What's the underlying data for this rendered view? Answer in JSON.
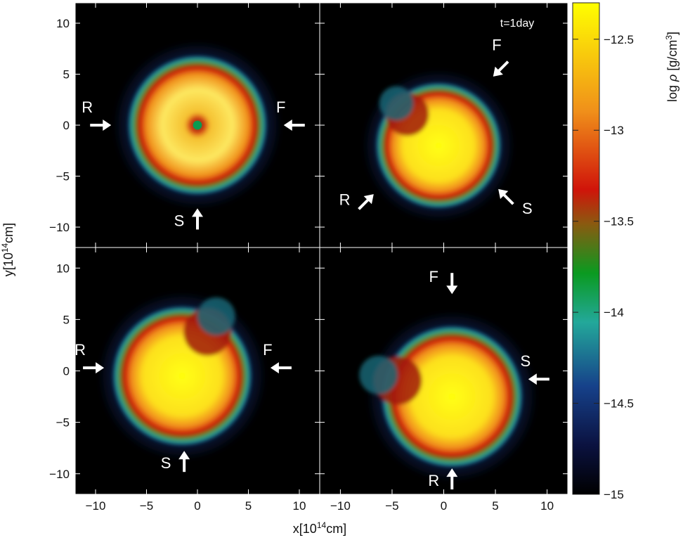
{
  "figure": {
    "xlabel_base": "x[10",
    "xlabel_exp": "14",
    "xlabel_unit": "cm]",
    "ylabel_base": "y[10",
    "ylabel_exp": "14",
    "ylabel_unit": "cm]",
    "colorbar_label_prefix": "log ",
    "colorbar_label_symbol": "ρ",
    "colorbar_label_unit": " [g/cm",
    "colorbar_label_exp": "3",
    "colorbar_label_close": "]",
    "time_label": "t=1day"
  },
  "chart_data": {
    "type": "heatmap",
    "description_panels": "2x2 density maps",
    "xlim": [
      -12,
      12
    ],
    "ylim": [
      -12,
      12
    ],
    "x_ticks": [
      -10,
      -5,
      0,
      5,
      10
    ],
    "x_tick_labels": [
      "−10",
      "−5",
      "0",
      "5",
      "10"
    ],
    "y_ticks": [
      -10,
      -5,
      0,
      5,
      10
    ],
    "y_tick_labels": [
      "−10",
      "−5",
      "0",
      "5",
      "10"
    ],
    "colorbar": {
      "range": [
        -15,
        -12.3
      ],
      "ticks": [
        -12.5,
        -13,
        -13.5,
        -14,
        -14.5,
        -15
      ],
      "tick_labels": [
        "−12.5",
        "−13",
        "−13.5",
        "−14",
        "−14.5",
        "−15"
      ],
      "colors": [
        "#000000",
        "#0a1a4a",
        "#1a4a8a",
        "#2ab09a",
        "#0a9a20",
        "#9a3a10",
        "#d01a0a",
        "#f08a1a",
        "#ffff00"
      ]
    },
    "panels": [
      {
        "position": "top-left",
        "blob": {
          "cx": 0,
          "cy": 0,
          "r": 6.2,
          "hole": true
        },
        "markers": [
          {
            "label": "R",
            "x": -9.5,
            "y": 0,
            "dir": "right"
          },
          {
            "label": "F",
            "x": 9.5,
            "y": 0,
            "dir": "left"
          },
          {
            "label": "S",
            "x": 0,
            "y": -9.2,
            "dir": "up"
          }
        ]
      },
      {
        "position": "top-right",
        "blob": {
          "cx": -0.5,
          "cy": -2,
          "r": 5.5,
          "kidney": true
        },
        "markers": [
          {
            "label": "F",
            "x": 5.5,
            "y": 5.5,
            "dir": "down-left"
          },
          {
            "label": "R",
            "x": -7.5,
            "y": -7.5,
            "dir": "up-right"
          },
          {
            "label": "S",
            "x": 6,
            "y": -7,
            "dir": "up-left"
          }
        ]
      },
      {
        "position": "bottom-left",
        "blob": {
          "cx": -1.5,
          "cy": -0.5,
          "r": 6.2,
          "kidney": true
        },
        "markers": [
          {
            "label": "R",
            "x": -10.2,
            "y": 0.3,
            "dir": "right"
          },
          {
            "label": "F",
            "x": 8.2,
            "y": 0.3,
            "dir": "left"
          },
          {
            "label": "S",
            "x": -1.3,
            "y": -8.8,
            "dir": "up"
          }
        ]
      },
      {
        "position": "bottom-right",
        "blob": {
          "cx": 0.8,
          "cy": -2.5,
          "r": 6.2,
          "kidney": true
        },
        "markers": [
          {
            "label": "F",
            "x": 0.8,
            "y": 8.5,
            "dir": "down"
          },
          {
            "label": "S",
            "x": 9.2,
            "y": -0.8,
            "dir": "left"
          },
          {
            "label": "R",
            "x": 0.8,
            "y": -10.5,
            "dir": "up"
          }
        ]
      }
    ]
  }
}
